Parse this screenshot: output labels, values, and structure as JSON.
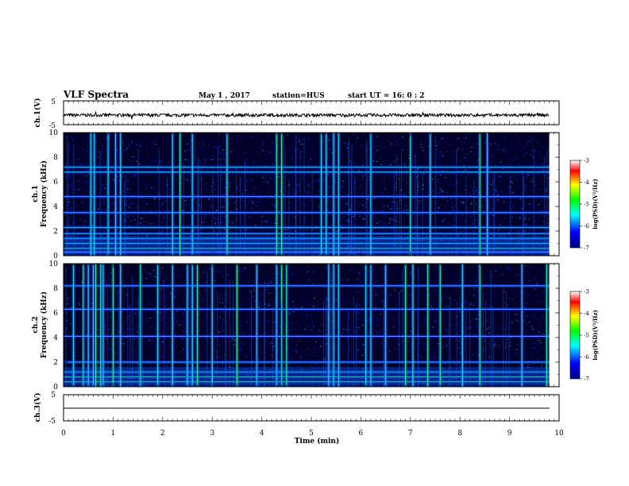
{
  "header": {
    "title": "VLF Spectra",
    "date": "May 1 , 2017",
    "station": "station=HUS",
    "start": "start UT =  16: 0 : 2"
  },
  "chart_data": [
    {
      "type": "line",
      "name": "ch1-waveform",
      "ylabel": "ch.1(V)",
      "ylim": [
        -5,
        5
      ],
      "yticks": [
        "5",
        "-5"
      ],
      "xlim": [
        0,
        10
      ],
      "trace": "noisy signal near -1 V from 0 to 9.8 min"
    },
    {
      "type": "heatmap",
      "name": "ch1-spectrogram",
      "ylabel_line1": "ch.1",
      "ylabel_line2": "Frequency (kHz)",
      "ylim": [
        0,
        10
      ],
      "yticks": [
        "0",
        "2",
        "4",
        "6",
        "8",
        "10"
      ],
      "xlim": [
        0,
        10
      ],
      "data_end": 9.8,
      "bright_bands_khz": [
        0.3,
        0.6,
        1.0,
        1.4,
        1.8,
        2.3,
        3.5,
        4.8,
        6.8,
        7.2
      ],
      "bursts_min": [
        0.55,
        0.62,
        0.9,
        1.05,
        1.15,
        2.2,
        2.35,
        2.6,
        3.3,
        4.3,
        4.4,
        5.2,
        5.3,
        5.45,
        5.55,
        6.2,
        7.0,
        7.4,
        8.4,
        8.55
      ],
      "colorbar": {
        "label": "log(PSD)(V²/Hz)",
        "range": [
          -7,
          -3
        ],
        "ticks": [
          "-3",
          "-4",
          "-5",
          "-6",
          "-7"
        ]
      }
    },
    {
      "type": "heatmap",
      "name": "ch2-spectrogram",
      "ylabel_line1": "ch.2",
      "ylabel_line2": "Frequency (kHz)",
      "ylim": [
        0,
        10
      ],
      "yticks": [
        "0",
        "2",
        "4",
        "6",
        "8",
        "10"
      ],
      "xlim": [
        0,
        10
      ],
      "data_end": 9.8,
      "bright_bands_khz": [
        0.4,
        0.8,
        1.2,
        2.0,
        4.1,
        6.3,
        8.2
      ],
      "bursts_min": [
        0.2,
        0.4,
        0.5,
        0.6,
        0.65,
        0.75,
        0.8,
        1.0,
        1.15,
        1.55,
        1.9,
        2.2,
        2.5,
        2.6,
        2.7,
        3.0,
        3.5,
        3.9,
        4.3,
        4.4,
        4.5,
        5.35,
        5.45,
        5.55,
        6.1,
        6.2,
        6.5,
        6.9,
        7.05,
        7.35,
        7.6,
        8.05,
        8.4,
        9.25,
        9.75
      ],
      "colorbar": {
        "label": "log(PSD)(V²/Hz)",
        "range": [
          -7,
          -3
        ],
        "ticks": [
          "-3",
          "-4",
          "-5",
          "-6",
          "-7"
        ]
      }
    },
    {
      "type": "line",
      "name": "ch3-waveform",
      "ylabel": "ch.3(V)",
      "ylim": [
        -5,
        5
      ],
      "yticks": [
        "5",
        "-5"
      ],
      "xlim": [
        0,
        10
      ],
      "trace": "flat line near -1 V from 0 to 9.8 min"
    }
  ],
  "xaxis": {
    "label": "Time (min)",
    "ticks": [
      "0",
      "1",
      "2",
      "3",
      "4",
      "5",
      "6",
      "7",
      "8",
      "9",
      "10"
    ]
  },
  "colors": {
    "background": "#00002a",
    "colormap": [
      "#000080",
      "#0000ff",
      "#00ffff",
      "#00ff00",
      "#ffff00",
      "#ff0000",
      "#ffffff"
    ]
  }
}
